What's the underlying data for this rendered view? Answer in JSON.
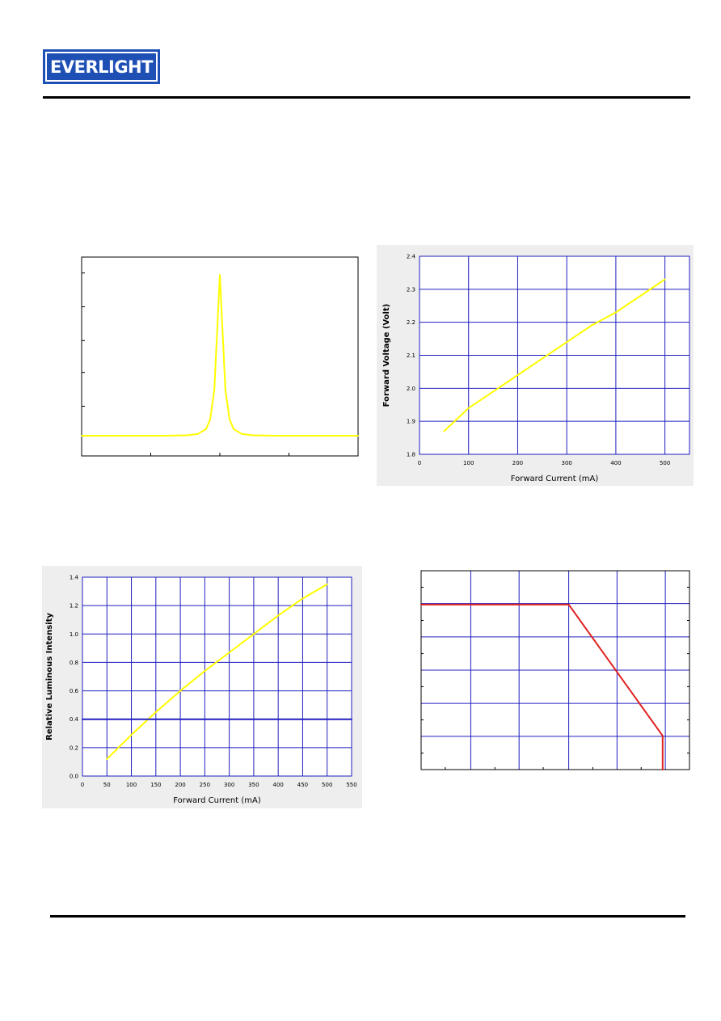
{
  "header": {
    "logo_text": "EVERLIGHT"
  },
  "colors": {
    "grid": "#1f1fbf",
    "yellow_curve": "#ffff00",
    "red_curve": "#e02020",
    "logo": "#1e4fb5",
    "panel_bg": "#eeeeee"
  },
  "chart_data": [
    {
      "type": "line",
      "xlabel": "",
      "ylabel": "",
      "grid": false,
      "series": [
        {
          "x": [
            0,
            0.2,
            0.3,
            0.38,
            0.42,
            0.45,
            0.465,
            0.48,
            0.49,
            0.5,
            0.51,
            0.52,
            0.535,
            0.55,
            0.58,
            0.62,
            0.7,
            0.8,
            1.0
          ],
          "y": [
            0.02,
            0.02,
            0.02,
            0.022,
            0.03,
            0.06,
            0.12,
            0.3,
            0.65,
            1.0,
            0.65,
            0.3,
            0.12,
            0.06,
            0.03,
            0.022,
            0.02,
            0.02,
            0.02
          ]
        }
      ]
    },
    {
      "type": "line",
      "xlabel": "Forward Current (mA)",
      "ylabel": "Forward Voltage (Volt)",
      "xlim": [
        0,
        550
      ],
      "ylim": [
        1.8,
        2.4
      ],
      "xticks": [
        "0",
        "100",
        "200",
        "300",
        "400",
        "500"
      ],
      "yticks": [
        "1.8",
        "1.9",
        "2.0",
        "2.1",
        "2.2",
        "2.3",
        "2.4"
      ],
      "grid": true,
      "series": [
        {
          "x": [
            50,
            100,
            150,
            200,
            250,
            300,
            350,
            400,
            450,
            500
          ],
          "y": [
            1.87,
            1.94,
            1.99,
            2.04,
            2.09,
            2.14,
            2.19,
            2.23,
            2.28,
            2.33
          ]
        }
      ]
    },
    {
      "type": "line",
      "xlabel": "Forward Current (mA)",
      "ylabel": "Relative Luminous Intensity",
      "xlim": [
        0,
        550
      ],
      "ylim": [
        0.0,
        1.4
      ],
      "xticks": [
        "0",
        "50",
        "100",
        "150",
        "200",
        "250",
        "300",
        "350",
        "400",
        "450",
        "500",
        "550"
      ],
      "yticks": [
        "0.0",
        "0.2",
        "0.4",
        "0.6",
        "0.8",
        "1.0",
        "1.2",
        "1.4"
      ],
      "grid": true,
      "series": [
        {
          "x": [
            50,
            100,
            150,
            200,
            250,
            300,
            350,
            400,
            450,
            500
          ],
          "y": [
            0.12,
            0.29,
            0.45,
            0.6,
            0.74,
            0.87,
            1.0,
            1.13,
            1.25,
            1.35
          ]
        },
        {
          "x": [
            0,
            550
          ],
          "y": [
            0.4,
            0.4
          ]
        }
      ]
    },
    {
      "type": "line",
      "xlabel": "",
      "ylabel": "",
      "grid": true,
      "series": [
        {
          "x": [
            0,
            0.55,
            0.9,
            0.9
          ],
          "y": [
            0.83,
            0.83,
            0.17,
            0.0
          ]
        }
      ]
    }
  ]
}
